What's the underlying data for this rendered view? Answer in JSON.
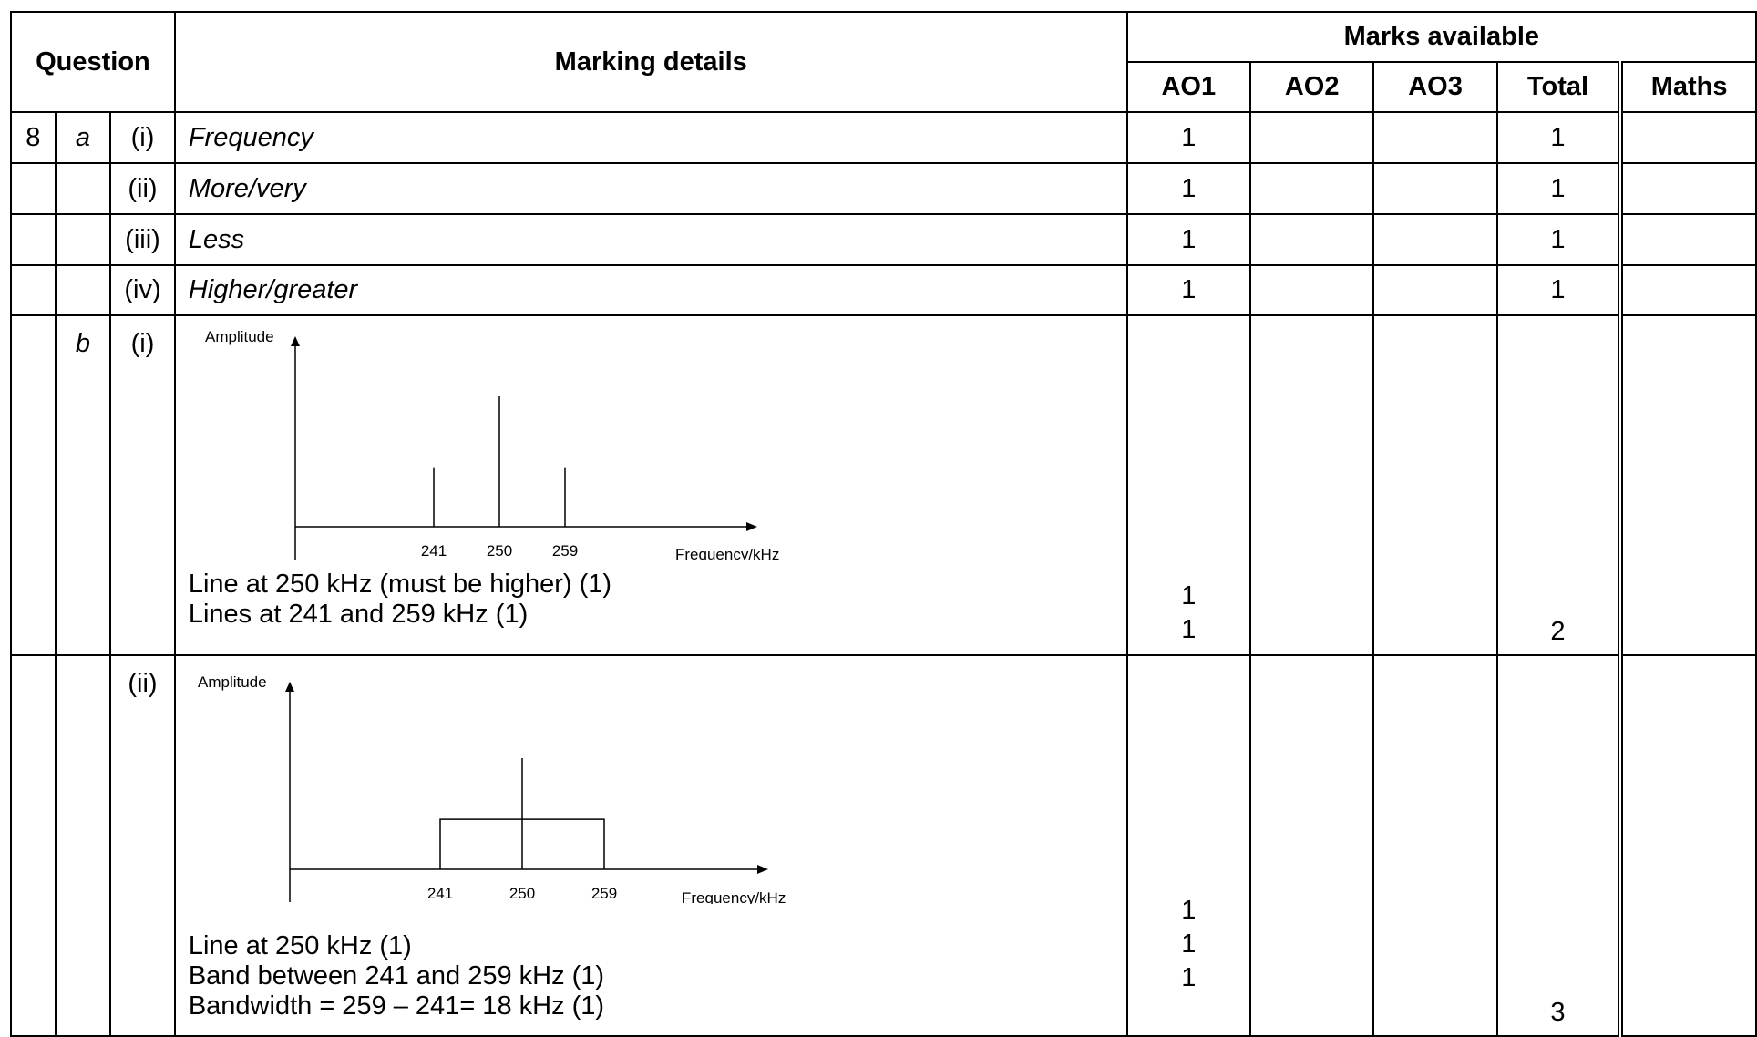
{
  "header": {
    "question": "Question",
    "marking_details": "Marking details",
    "marks_available": "Marks available",
    "ao1": "AO1",
    "ao2": "AO2",
    "ao3": "AO3",
    "total": "Total",
    "maths": "Maths"
  },
  "rows": [
    {
      "q": "8",
      "part": "a",
      "sub": "(i)",
      "detail": "Frequency",
      "ao1": "1",
      "total": "1"
    },
    {
      "sub": "(ii)",
      "detail": "More/very",
      "ao1": "1",
      "total": "1"
    },
    {
      "sub": "(iii)",
      "detail": "Less",
      "ao1": "1",
      "total": "1"
    },
    {
      "sub": "(iv)",
      "detail": "Higher/greater",
      "ao1": "1",
      "total": "1"
    }
  ],
  "b_i": {
    "part": "b",
    "sub": "(i)",
    "diagram": {
      "y_label": "Amplitude",
      "x_label": "Frequency/kHz",
      "ticks": [
        "241",
        "250",
        "259"
      ],
      "lines": [
        {
          "x": 241,
          "amplitude": 0.45
        },
        {
          "x": 250,
          "amplitude": 1.0
        },
        {
          "x": 259,
          "amplitude": 0.45
        }
      ]
    },
    "notes": [
      "Line at 250 kHz (must be higher) (1)",
      "Lines at 241 and 259 kHz (1)"
    ],
    "ao1": [
      "1",
      "1"
    ],
    "total": "2"
  },
  "b_ii": {
    "sub": "(ii)",
    "diagram": {
      "y_label": "Amplitude",
      "x_label": "Frequency/kHz",
      "ticks": [
        "241",
        "250",
        "259"
      ],
      "band": {
        "from": 241,
        "to": 259,
        "amplitude": 0.45
      },
      "line": {
        "x": 250,
        "amplitude": 1.0
      }
    },
    "notes": [
      "Line at 250 kHz (1)",
      "Band between 241 and 259 kHz (1)",
      "Bandwidth = 259 – 241= 18 kHz (1)"
    ],
    "ao1": [
      "1",
      "1",
      "1"
    ],
    "total": "3"
  }
}
